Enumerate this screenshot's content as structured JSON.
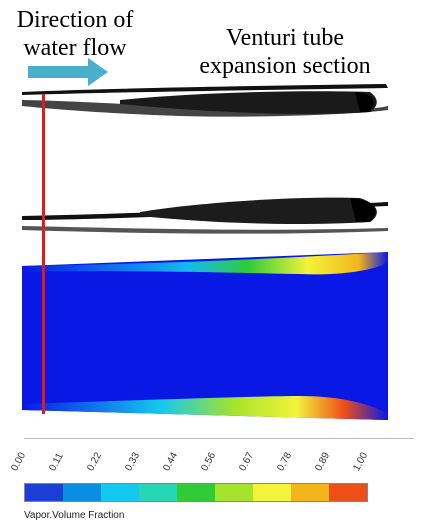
{
  "labels": {
    "direction": "Direction of water flow",
    "venturi": "Venturi tube expansion section"
  },
  "colorbar": {
    "title": "Vapor.Volume Fraction",
    "ticks": [
      "0.00",
      "0.11",
      "0.22",
      "0.33",
      "0.44",
      "0.56",
      "0.67",
      "0.78",
      "0.89",
      "1.00"
    ],
    "colors": [
      "#1b3fd4",
      "#0a8ee3",
      "#14c9ee",
      "#27d6b4",
      "#31cb38",
      "#a6e32c",
      "#f3f33b",
      "#f3b51c",
      "#ee4e17"
    ]
  },
  "colors": {
    "arrow": "#4aaecd",
    "reference_line": "#e11a1a",
    "simulation_background": "#0a18e6"
  }
}
